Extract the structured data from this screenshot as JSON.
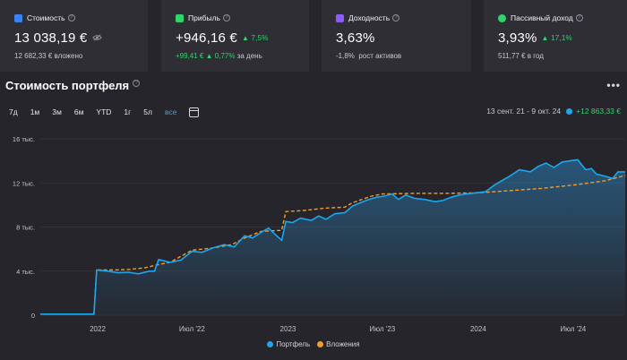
{
  "cards": [
    {
      "title": "Стоимость",
      "icon": "wallet-icon",
      "icon_color": "#3b82f6",
      "value": "13 038,19 €",
      "change": "",
      "sub_value": "12 682,33 €",
      "sub_text": "вложено"
    },
    {
      "title": "Прибыль",
      "icon": "profit-icon",
      "icon_color": "#2fd56a",
      "value": "+946,16 €",
      "change": "7,5%",
      "sub_value": "+99,41 €",
      "sub_change": "0,77%",
      "sub_text": "за день"
    },
    {
      "title": "Доходность",
      "icon": "yield-icon",
      "icon_color": "#8b5cf6",
      "value": "3,63%",
      "change": "",
      "sub_value": "-1,8%",
      "sub_text": "рост активов"
    },
    {
      "title": "Пассивный доход",
      "icon": "passive-income-icon",
      "icon_color": "#2fd56a",
      "value": "3,93%",
      "change": "17,1%",
      "sub_value": "511,77 €",
      "sub_text": "в год"
    }
  ],
  "section_title": "Стоимость портфеля",
  "periods": [
    "7д",
    "1м",
    "3м",
    "6м",
    "YTD",
    "1г",
    "5л",
    "все"
  ],
  "active_period": "все",
  "range": {
    "dates": "13 сент. 21 - 9 окт. 24",
    "change": "+12 863,33 €"
  },
  "colors": {
    "portfolio": "#1aa7f0",
    "invested": "#f39c2c",
    "positive": "#2fd56a",
    "background": "#26252b",
    "card": "#2f2e35",
    "active": "#33a8f0"
  },
  "chart_data": {
    "type": "line",
    "x_start": "2021-09-13",
    "x_end": "2024-10-09",
    "y_ticks": [
      "0",
      "4 тыс.",
      "8 тыс.",
      "12 тыс.",
      "16 тыс."
    ],
    "ylim": [
      0,
      16000
    ],
    "x_ticks": [
      {
        "label": "2022",
        "date": "2022-01-01"
      },
      {
        "label": "Июл '22",
        "date": "2022-07-01"
      },
      {
        "label": "2023",
        "date": "2023-01-01"
      },
      {
        "label": "Июл '23",
        "date": "2023-07-01"
      },
      {
        "label": "2024",
        "date": "2024-01-01"
      },
      {
        "label": "Июл '24",
        "date": "2024-07-01"
      }
    ],
    "legend": [
      "Портфель",
      "Вложения"
    ],
    "series": [
      {
        "name": "Портфель",
        "points": [
          [
            "2021-09-13",
            100
          ],
          [
            "2021-12-01",
            100
          ],
          [
            "2021-12-25",
            100
          ],
          [
            "2021-12-30",
            4100
          ],
          [
            "2022-01-20",
            4000
          ],
          [
            "2022-02-10",
            3850
          ],
          [
            "2022-03-01",
            3900
          ],
          [
            "2022-03-20",
            3750
          ],
          [
            "2022-04-10",
            4000
          ],
          [
            "2022-04-20",
            4000
          ],
          [
            "2022-04-28",
            5050
          ],
          [
            "2022-05-20",
            4800
          ],
          [
            "2022-06-10",
            5000
          ],
          [
            "2022-07-01",
            5800
          ],
          [
            "2022-07-20",
            5700
          ],
          [
            "2022-08-10",
            6100
          ],
          [
            "2022-09-01",
            6400
          ],
          [
            "2022-09-20",
            6200
          ],
          [
            "2022-10-10",
            7200
          ],
          [
            "2022-10-25",
            7000
          ],
          [
            "2022-11-10",
            7500
          ],
          [
            "2022-11-25",
            7900
          ],
          [
            "2022-12-08",
            7300
          ],
          [
            "2022-12-20",
            6800
          ],
          [
            "2022-12-28",
            8500
          ],
          [
            "2023-01-10",
            8400
          ],
          [
            "2023-01-25",
            8800
          ],
          [
            "2023-02-15",
            8600
          ],
          [
            "2023-03-01",
            9000
          ],
          [
            "2023-03-15",
            8700
          ],
          [
            "2023-04-01",
            9200
          ],
          [
            "2023-04-20",
            9300
          ],
          [
            "2023-05-05",
            9900
          ],
          [
            "2023-05-20",
            10200
          ],
          [
            "2023-06-05",
            10500
          ],
          [
            "2023-06-20",
            10700
          ],
          [
            "2023-07-05",
            10800
          ],
          [
            "2023-07-20",
            11000
          ],
          [
            "2023-08-01",
            10500
          ],
          [
            "2023-08-15",
            10900
          ],
          [
            "2023-09-01",
            10600
          ],
          [
            "2023-09-20",
            10500
          ],
          [
            "2023-10-10",
            10300
          ],
          [
            "2023-10-25",
            10400
          ],
          [
            "2023-11-10",
            10700
          ],
          [
            "2023-11-25",
            10900
          ],
          [
            "2023-12-10",
            11000
          ],
          [
            "2023-12-28",
            11100
          ],
          [
            "2024-01-15",
            11200
          ],
          [
            "2024-02-01",
            11800
          ],
          [
            "2024-02-15",
            12200
          ],
          [
            "2024-03-01",
            12600
          ],
          [
            "2024-03-20",
            13200
          ],
          [
            "2024-04-10",
            13000
          ],
          [
            "2024-04-25",
            13500
          ],
          [
            "2024-05-10",
            13800
          ],
          [
            "2024-05-25",
            13400
          ],
          [
            "2024-06-10",
            13900
          ],
          [
            "2024-06-25",
            14000
          ],
          [
            "2024-07-10",
            14100
          ],
          [
            "2024-07-25",
            13200
          ],
          [
            "2024-08-05",
            13300
          ],
          [
            "2024-08-15",
            12800
          ],
          [
            "2024-09-01",
            12600
          ],
          [
            "2024-09-15",
            12400
          ],
          [
            "2024-09-25",
            13000
          ],
          [
            "2024-10-09",
            13000
          ]
        ]
      },
      {
        "name": "Вложения",
        "points": [
          [
            "2021-09-13",
            100
          ],
          [
            "2021-12-25",
            100
          ],
          [
            "2021-12-30",
            4100
          ],
          [
            "2022-02-01",
            4100
          ],
          [
            "2022-03-01",
            4150
          ],
          [
            "2022-04-01",
            4300
          ],
          [
            "2022-04-28",
            4600
          ],
          [
            "2022-05-20",
            4800
          ],
          [
            "2022-07-01",
            5900
          ],
          [
            "2022-08-10",
            6100
          ],
          [
            "2022-09-15",
            6400
          ],
          [
            "2022-10-10",
            7000
          ],
          [
            "2022-11-10",
            7600
          ],
          [
            "2022-12-20",
            7700
          ],
          [
            "2022-12-28",
            9400
          ],
          [
            "2023-02-01",
            9500
          ],
          [
            "2023-03-10",
            9700
          ],
          [
            "2023-04-20",
            9800
          ],
          [
            "2023-05-05",
            10200
          ],
          [
            "2023-06-10",
            10800
          ],
          [
            "2023-07-01",
            11000
          ],
          [
            "2023-09-01",
            11050
          ],
          [
            "2023-11-01",
            11050
          ],
          [
            "2024-01-01",
            11100
          ],
          [
            "2024-03-01",
            11300
          ],
          [
            "2024-05-01",
            11500
          ],
          [
            "2024-07-01",
            11800
          ],
          [
            "2024-09-01",
            12200
          ],
          [
            "2024-10-09",
            12682
          ]
        ]
      }
    ]
  }
}
